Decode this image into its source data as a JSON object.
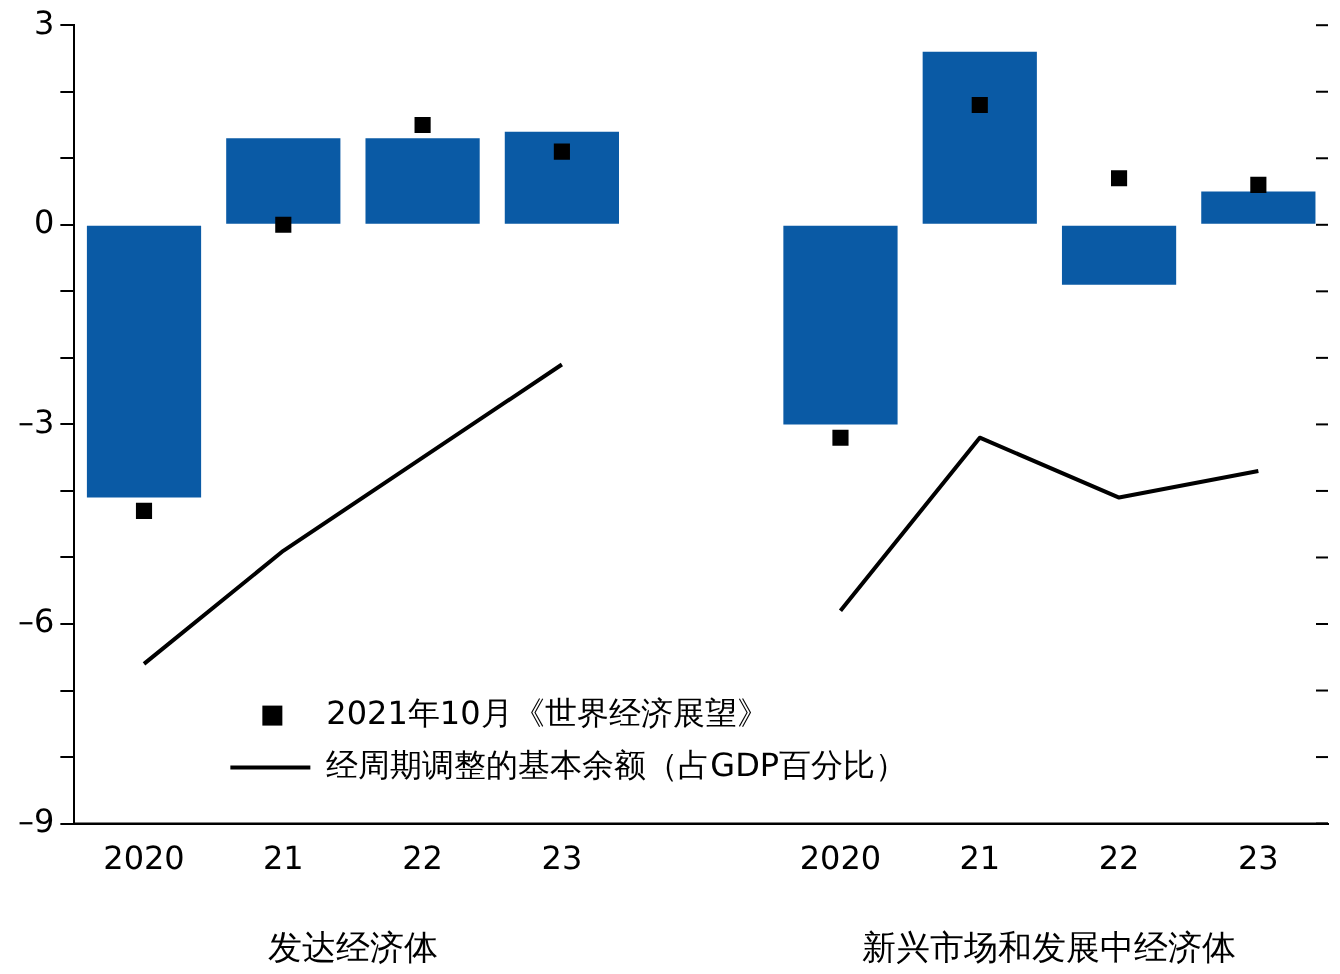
{
  "chart_data": {
    "type": "bar",
    "categories": [
      "2020",
      "21",
      "22",
      "23",
      null,
      "2020",
      "21",
      "22",
      "23"
    ],
    "series": [
      {
        "color": "#0a5aa5",
        "values": [
          -4.1,
          1.3,
          1.3,
          1.4,
          null,
          -3.0,
          2.6,
          -0.9,
          0.5
        ]
      },
      {
        "type": "scatter",
        "name": "2021年10月《世界经济展望》",
        "color": "#000000",
        "marker": "square",
        "values": [
          -4.3,
          0.0,
          1.5,
          1.1,
          null,
          -3.2,
          1.8,
          0.7,
          0.6
        ]
      },
      {
        "type": "line",
        "name": "经周期调整的基本余额（占GDP百分比）",
        "color": "#000000",
        "marker": "none",
        "values": [
          -6.6,
          -4.9,
          -3.5,
          -2.1,
          null,
          -5.8,
          -3.2,
          -4.1,
          -3.7
        ]
      }
    ],
    "ylim": [
      -9,
      3
    ],
    "yticks": [
      {
        "value": -9,
        "label": "–9"
      },
      {
        "value": -8,
        "label": null
      },
      {
        "value": -7,
        "label": null
      },
      {
        "value": -6,
        "label": "–6"
      },
      {
        "value": -5,
        "label": null
      },
      {
        "value": -4,
        "label": null
      },
      {
        "value": -3,
        "label": "–3"
      },
      {
        "value": -2,
        "label": null
      },
      {
        "value": -1,
        "label": null
      },
      0,
      {
        "value": 1,
        "label": null
      },
      {
        "value": 2,
        "label": null
      },
      3
    ],
    "legend": "bottom",
    "grid": false,
    "annotations": [
      "发达经济体",
      "新兴市场和发展中经济体"
    ]
  }
}
